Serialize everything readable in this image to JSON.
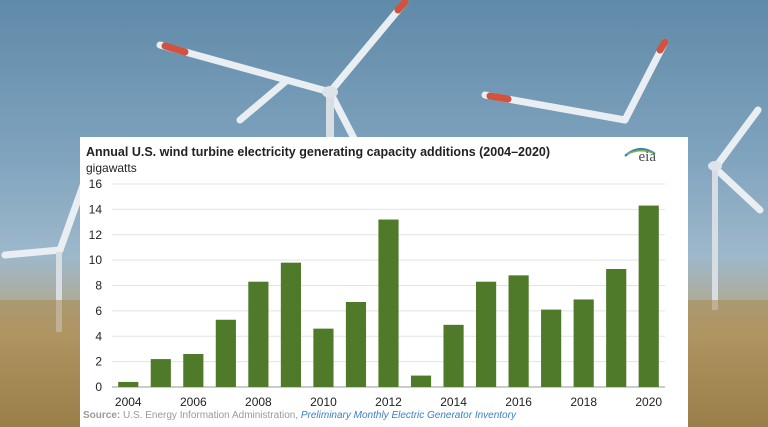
{
  "chart_data": {
    "type": "bar",
    "title": "Annual U.S. wind turbine electricity generating capacity additions (2004–2020)",
    "unit_label": "gigawatts",
    "categories": [
      "2004",
      "2005",
      "2006",
      "2007",
      "2008",
      "2009",
      "2010",
      "2011",
      "2012",
      "2013",
      "2014",
      "2015",
      "2016",
      "2017",
      "2018",
      "2019",
      "2020"
    ],
    "x_tick_labels": [
      "2004",
      "2006",
      "2008",
      "2010",
      "2012",
      "2014",
      "2016",
      "2018",
      "2020"
    ],
    "values": [
      0.4,
      2.2,
      2.6,
      5.3,
      8.3,
      9.8,
      4.6,
      6.7,
      13.2,
      0.9,
      4.9,
      8.3,
      8.8,
      6.1,
      6.9,
      9.3,
      14.3
    ],
    "ylim": [
      0,
      16
    ],
    "y_ticks": [
      0,
      2,
      4,
      6,
      8,
      10,
      12,
      14,
      16
    ],
    "grid": true,
    "bar_color": "#4e7a2a"
  },
  "source": {
    "label": "Source:",
    "text": "U.S. Energy Information Administration,",
    "link_text": "Preliminary Monthly Electric Generator Inventory"
  },
  "logo": {
    "text": "eia",
    "icon": "eia-logo-icon"
  }
}
